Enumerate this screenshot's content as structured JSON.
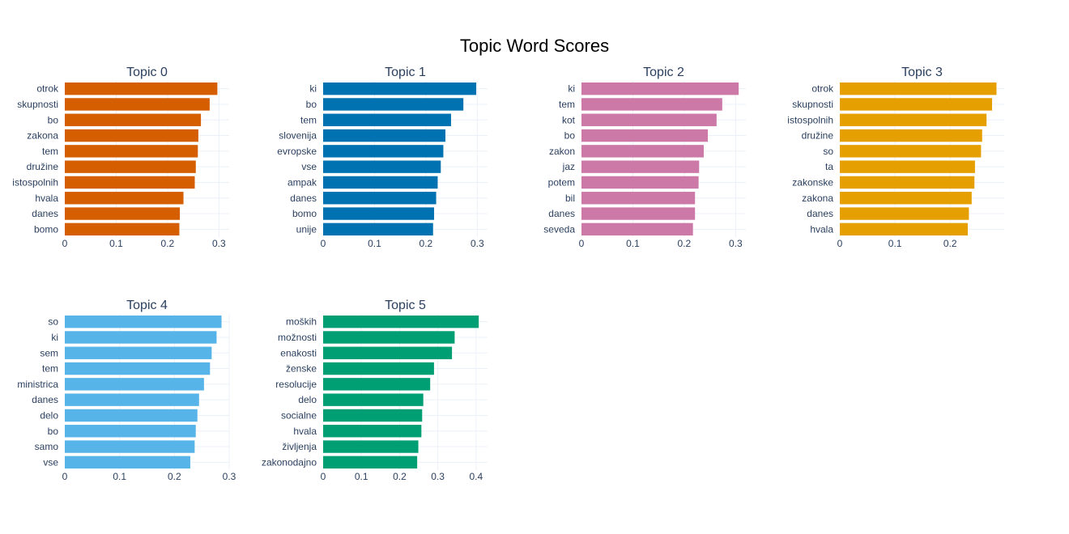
{
  "title": "Topic Word Scores",
  "chart_data": [
    {
      "type": "bar",
      "orientation": "horizontal",
      "title": "Topic 0",
      "color": "#D55E00",
      "categories": [
        "otrok",
        "skupnosti",
        "bo",
        "zakona",
        "tem",
        "družine",
        "istospolnih",
        "hvala",
        "danes",
        "bomo"
      ],
      "values": [
        0.297,
        0.282,
        0.265,
        0.26,
        0.259,
        0.255,
        0.253,
        0.231,
        0.224,
        0.223
      ],
      "xlim": [
        0,
        0.32
      ],
      "xticks": [
        "0",
        "0.1",
        "0.2",
        "0.3"
      ],
      "grid": true
    },
    {
      "type": "bar",
      "orientation": "horizontal",
      "title": "Topic 1",
      "color": "#0072B2",
      "categories": [
        "ki",
        "bo",
        "tem",
        "slovenija",
        "evropske",
        "vse",
        "ampak",
        "danes",
        "bomo",
        "unije"
      ],
      "values": [
        0.298,
        0.273,
        0.249,
        0.238,
        0.234,
        0.229,
        0.223,
        0.22,
        0.216,
        0.214
      ],
      "xlim": [
        0,
        0.32
      ],
      "xticks": [
        "0",
        "0.1",
        "0.2",
        "0.3"
      ],
      "grid": true
    },
    {
      "type": "bar",
      "orientation": "horizontal",
      "title": "Topic 2",
      "color": "#CC79A7",
      "categories": [
        "ki",
        "tem",
        "kot",
        "bo",
        "zakon",
        "jaz",
        "potem",
        "bil",
        "danes",
        "seveda"
      ],
      "values": [
        0.306,
        0.274,
        0.263,
        0.246,
        0.238,
        0.229,
        0.228,
        0.221,
        0.221,
        0.217
      ],
      "xlim": [
        0,
        0.32
      ],
      "xticks": [
        "0",
        "0.1",
        "0.2",
        "0.3"
      ],
      "grid": true
    },
    {
      "type": "bar",
      "orientation": "horizontal",
      "title": "Topic 3",
      "color": "#E69F00",
      "categories": [
        "otrok",
        "skupnosti",
        "istospolnih",
        "družine",
        "so",
        "ta",
        "zakonske",
        "zakona",
        "danes",
        "hvala"
      ],
      "values": [
        0.284,
        0.276,
        0.266,
        0.258,
        0.256,
        0.245,
        0.244,
        0.239,
        0.234,
        0.232
      ],
      "xlim": [
        0,
        0.298
      ],
      "xticks": [
        "0",
        "0.1",
        "0.2"
      ],
      "grid": true
    },
    {
      "type": "bar",
      "orientation": "horizontal",
      "title": "Topic 4",
      "color": "#56B4E9",
      "categories": [
        "so",
        "ki",
        "sem",
        "tem",
        "ministrica",
        "danes",
        "delo",
        "bo",
        "samo",
        "vse"
      ],
      "values": [
        0.286,
        0.277,
        0.268,
        0.265,
        0.254,
        0.245,
        0.242,
        0.239,
        0.237,
        0.229
      ],
      "xlim": [
        0,
        0.3
      ],
      "xticks": [
        "0",
        "0.1",
        "0.2",
        "0.3"
      ],
      "grid": true
    },
    {
      "type": "bar",
      "orientation": "horizontal",
      "title": "Topic 5",
      "color": "#009E73",
      "categories": [
        "moških",
        "možnosti",
        "enakosti",
        "ženske",
        "resolucije",
        "delo",
        "socialne",
        "hvala",
        "življenja",
        "zakonodajno"
      ],
      "values": [
        0.407,
        0.344,
        0.337,
        0.29,
        0.28,
        0.262,
        0.259,
        0.257,
        0.249,
        0.246
      ],
      "xlim": [
        0,
        0.43
      ],
      "xticks": [
        "0",
        "0.1",
        "0.2",
        "0.3",
        "0.4"
      ],
      "grid": true
    }
  ]
}
